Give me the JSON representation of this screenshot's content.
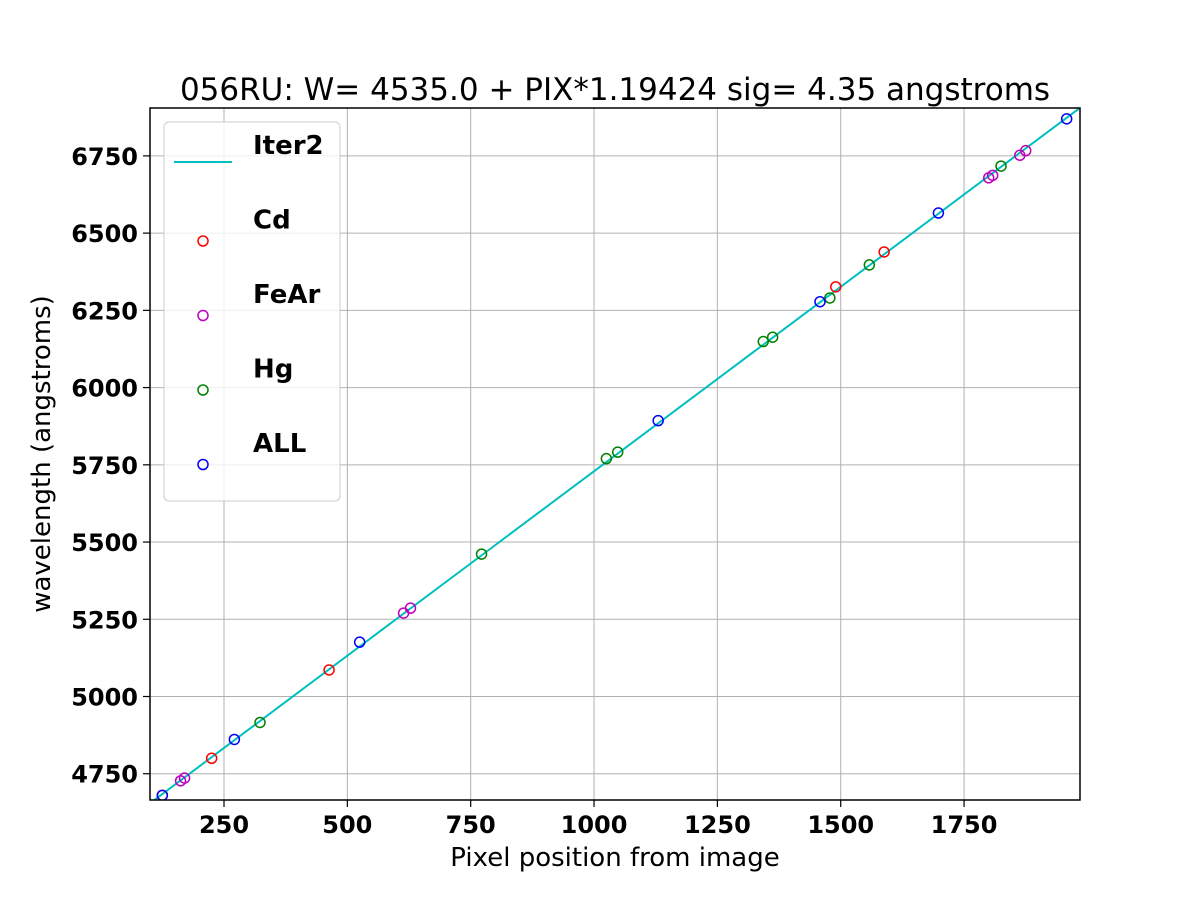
{
  "chart_data": {
    "type": "scatter",
    "title": "056RU: W= 4535.0 + PIX*1.19424  sig=  4.35 angstroms",
    "xlabel": "Pixel position from image",
    "ylabel": "wavelength (angstroms)",
    "xlim": [
      100,
      1985
    ],
    "ylim": [
      4665,
      6905
    ],
    "xticks": [
      250,
      500,
      750,
      1000,
      1250,
      1500,
      1750
    ],
    "yticks": [
      4750,
      5000,
      5250,
      5500,
      5750,
      6000,
      6250,
      6500,
      6750
    ],
    "grid": true,
    "legend_position": "top-left",
    "fit_line": {
      "name": "Iter2",
      "color": "#00bfbf",
      "intercept": 4535.0,
      "slope": 1.19424,
      "x_range": [
        100,
        1985
      ]
    },
    "series": [
      {
        "name": "Cd",
        "color": "#ff0000",
        "points": [
          {
            "x": 125,
            "y": 4680
          },
          {
            "x": 225,
            "y": 4800
          },
          {
            "x": 463,
            "y": 5086
          },
          {
            "x": 1490,
            "y": 6326
          },
          {
            "x": 1588,
            "y": 6439
          }
        ]
      },
      {
        "name": "FeAr",
        "color": "#bf00bf",
        "points": [
          {
            "x": 162,
            "y": 4727
          },
          {
            "x": 170,
            "y": 4736
          },
          {
            "x": 614,
            "y": 5270
          },
          {
            "x": 628,
            "y": 5286
          },
          {
            "x": 1800,
            "y": 6679
          },
          {
            "x": 1808,
            "y": 6687
          },
          {
            "x": 1863,
            "y": 6752
          },
          {
            "x": 1875,
            "y": 6767
          }
        ]
      },
      {
        "name": "Hg",
        "color": "#008000",
        "points": [
          {
            "x": 323,
            "y": 4916
          },
          {
            "x": 772,
            "y": 5461
          },
          {
            "x": 1025,
            "y": 5770
          },
          {
            "x": 1048,
            "y": 5791
          },
          {
            "x": 1343,
            "y": 6149
          },
          {
            "x": 1362,
            "y": 6163
          },
          {
            "x": 1478,
            "y": 6290
          },
          {
            "x": 1558,
            "y": 6397
          },
          {
            "x": 1825,
            "y": 6717
          }
        ]
      },
      {
        "name": "ALL",
        "color": "#0000ff",
        "points": [
          {
            "x": 125,
            "y": 4680
          },
          {
            "x": 271,
            "y": 4861
          },
          {
            "x": 525,
            "y": 5176
          },
          {
            "x": 1130,
            "y": 5893
          },
          {
            "x": 1458,
            "y": 6278
          },
          {
            "x": 1698,
            "y": 6565
          },
          {
            "x": 1958,
            "y": 6870
          }
        ]
      }
    ]
  }
}
